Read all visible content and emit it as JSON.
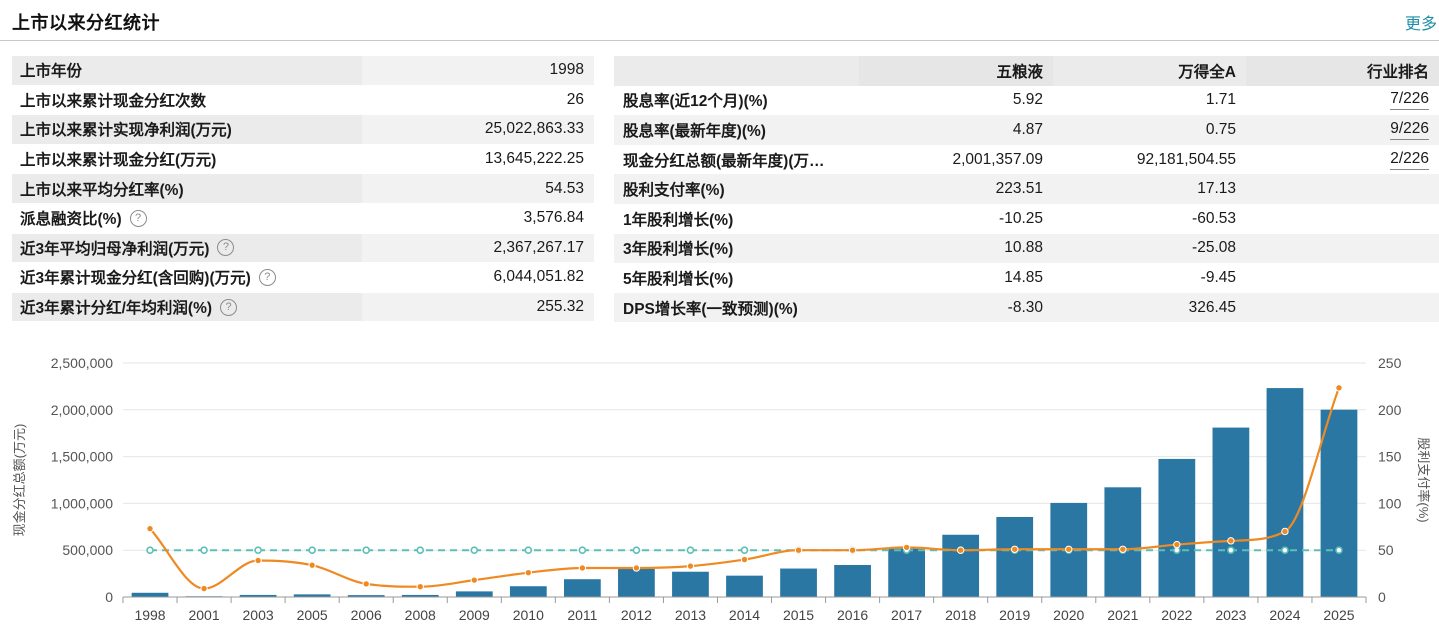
{
  "header": {
    "title": "上市以来分红统计",
    "more": "更多"
  },
  "left_table": [
    {
      "label": "上市年份",
      "value": "1998",
      "help": false
    },
    {
      "label": "上市以来累计现金分红次数",
      "value": "26",
      "help": false
    },
    {
      "label": "上市以来累计实现净利润(万元)",
      "value": "25,022,863.33",
      "help": false
    },
    {
      "label": "上市以来累计现金分红(万元)",
      "value": "13,645,222.25",
      "help": false
    },
    {
      "label": "上市以来平均分红率(%)",
      "value": "54.53",
      "help": false
    },
    {
      "label": "派息融资比(%)",
      "value": "3,576.84",
      "help": true
    },
    {
      "label": "近3年平均归母净利润(万元)",
      "value": "2,367,267.17",
      "help": true
    },
    {
      "label": "近3年累计现金分红(含回购)(万元)",
      "value": "6,044,051.82",
      "help": true
    },
    {
      "label": "近3年累计分红/年均利润(%)",
      "value": "255.32",
      "help": true
    }
  ],
  "help_icon": "question-circle-icon",
  "help_glyph": "?",
  "right_table": {
    "headers": [
      "",
      "五粮液",
      "万得全A",
      "行业排名"
    ],
    "rows": [
      [
        "股息率(近12个月)(%)",
        "5.92",
        "1.71",
        "7/226"
      ],
      [
        "股息率(最新年度)(%)",
        "4.87",
        "0.75",
        "9/226"
      ],
      [
        "现金分红总额(最新年度)(万…",
        "2,001,357.09",
        "92,181,504.55",
        "2/226"
      ],
      [
        "股利支付率(%)",
        "223.51",
        "17.13",
        ""
      ],
      [
        "1年股利增长(%)",
        "-10.25",
        "-60.53",
        ""
      ],
      [
        "3年股利增长(%)",
        "10.88",
        "-25.08",
        ""
      ],
      [
        "5年股利增长(%)",
        "14.85",
        "-9.45",
        ""
      ],
      [
        "DPS增长率(一致预测)(%)",
        "-8.30",
        "326.45",
        ""
      ]
    ]
  },
  "chart_data": {
    "type": "bar",
    "categories": [
      "1998",
      "2001",
      "2003",
      "2005",
      "2006",
      "2008",
      "2009",
      "2010",
      "2011",
      "2012",
      "2013",
      "2014",
      "2015",
      "2016",
      "2017",
      "2018",
      "2019",
      "2020",
      "2021",
      "2022",
      "2023",
      "2024",
      "2025"
    ],
    "series": [
      {
        "name": "",
        "type": "bar",
        "axis": "left",
        "color": "#2a77a4",
        "values": [
          45000,
          8000,
          22000,
          28000,
          20000,
          22000,
          60000,
          115000,
          190000,
          300000,
          270000,
          228000,
          304000,
          342000,
          517000,
          665000,
          855000,
          1005000,
          1172000,
          1475000,
          1810000,
          2232000,
          2001357
        ]
      },
      {
        "name": "",
        "type": "line",
        "axis": "right",
        "color": "#ef8a22",
        "smooth": true,
        "values": [
          73,
          9,
          39,
          34,
          14,
          11,
          18,
          26,
          31,
          31,
          33,
          40,
          50,
          50,
          53,
          50,
          51,
          51,
          51,
          56,
          60,
          70,
          223.51
        ]
      },
      {
        "name": "",
        "type": "line",
        "axis": "right",
        "color": "#5bbfb8",
        "dashed": true,
        "values": [
          50,
          50,
          50,
          50,
          50,
          50,
          50,
          50,
          50,
          50,
          50,
          50,
          50,
          50,
          50,
          50,
          50,
          50,
          50,
          50,
          50,
          50,
          50
        ]
      }
    ],
    "ylabel": "现金分红总额(万元)",
    "y2label": "股利支付率(%)",
    "ylim": [
      0,
      2500000
    ],
    "y2lim": [
      0,
      250
    ],
    "yticks": [
      "0",
      "500,000",
      "1,000,000",
      "1,500,000",
      "2,000,000",
      "2,500,000"
    ],
    "yticks_values": [
      0,
      500000,
      1000000,
      1500000,
      2000000,
      2500000
    ],
    "y2ticks": [
      "0",
      "50",
      "100",
      "150",
      "200",
      "250"
    ],
    "y2ticks_values": [
      0,
      50,
      100,
      150,
      200,
      250
    ],
    "grid": true
  }
}
